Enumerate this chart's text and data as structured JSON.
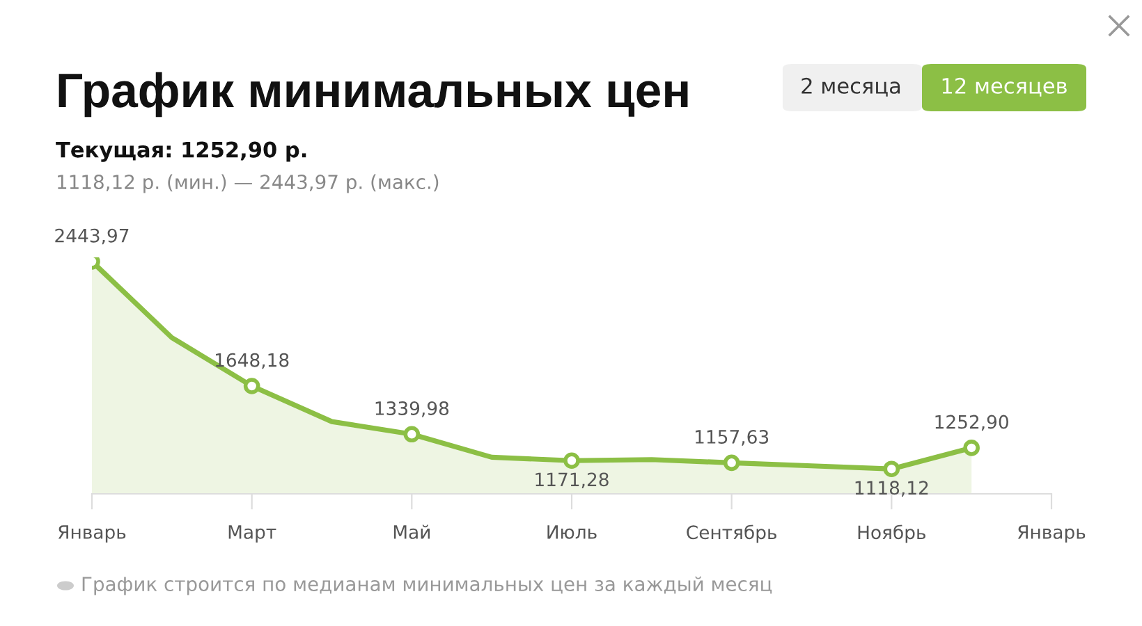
{
  "chart_data": {
    "type": "area",
    "title": "График минимальных цен",
    "subtitle": "Текущая: 1252,90 р.",
    "annotations": [
      "1118,12 р. (мин.) — 2443,97 р. (макс.)",
      "2 месяца",
      "12 месяцев",
      "График строится по медианам минимальных цен за каждый месяц"
    ],
    "categories": [
      "Январь",
      null,
      "Март",
      null,
      "Май",
      null,
      "Июль",
      null,
      "Сентябрь",
      null,
      "Ноябрь",
      null,
      "Январь"
    ],
    "series": [
      {
        "color": "#8cbf45",
        "values": [
          2443.97,
          1957,
          1648.18,
          1421,
          1339.98,
          1193,
          1171.28,
          1178,
          1157.63,
          1138,
          1118.12,
          1252.9,
          null
        ],
        "value_labels": [
          "2443,97",
          null,
          "1648,18",
          null,
          "1339,98",
          null,
          "1171,28",
          null,
          "1157,63",
          null,
          "1118,12",
          "1252,90",
          null
        ]
      }
    ],
    "marker": "circle",
    "line_style": "solid",
    "grid": false
  }
}
